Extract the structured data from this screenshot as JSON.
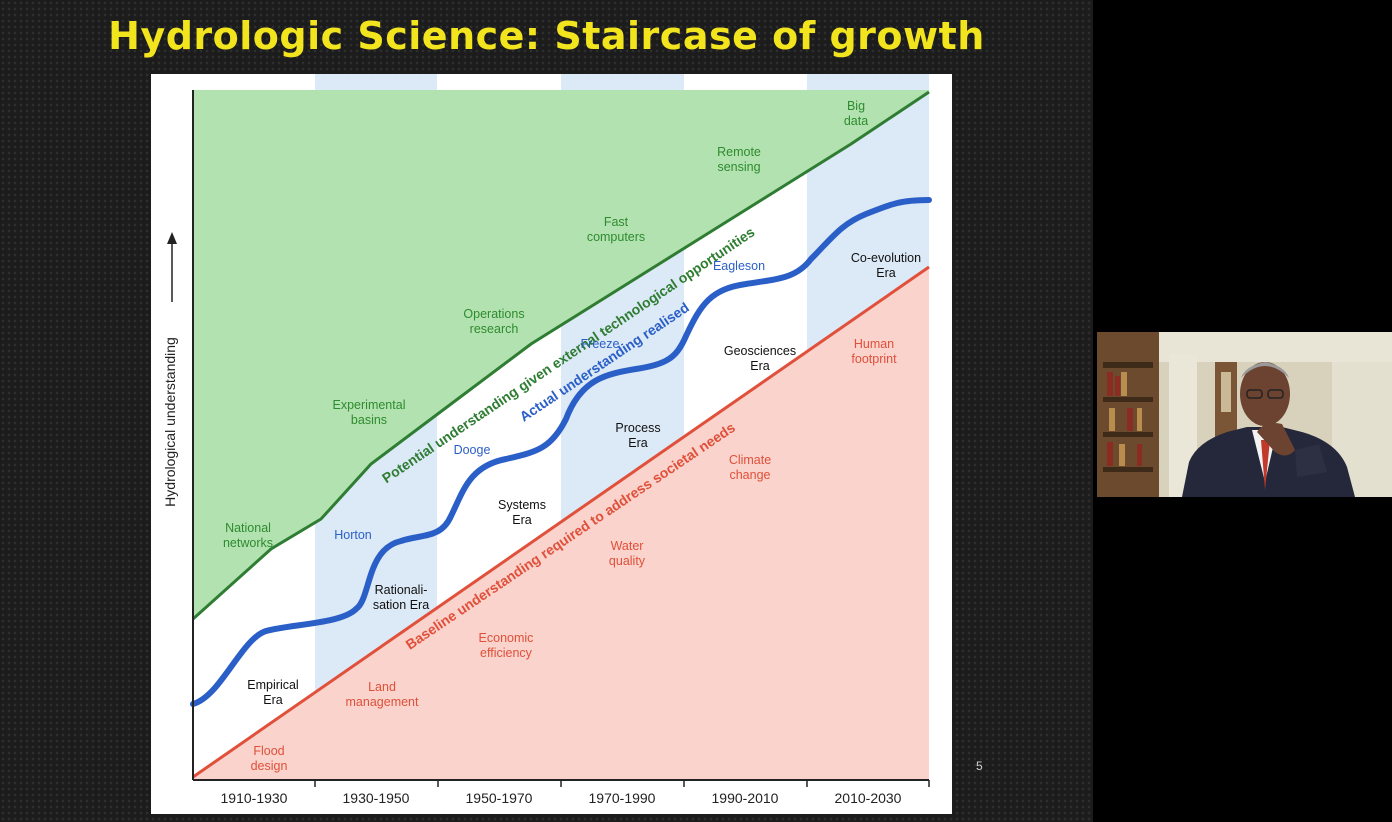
{
  "slide": {
    "title": "Hydrologic Science: Staircase of growth",
    "page_number": "5"
  },
  "chart_data": {
    "type": "line",
    "ylabel": "Hydrological understanding",
    "xlabel": "",
    "categories": [
      "1910-1930",
      "1930-1950",
      "1950-1970",
      "1970-1990",
      "1990-2010",
      "2010-2030"
    ],
    "series": [
      {
        "name": "Potential understanding given external technological opportunities",
        "color": "#2e7d32"
      },
      {
        "name": "Actual understanding realised",
        "color": "#2b5fc8"
      },
      {
        "name": "Baseline understanding required to address societal needs",
        "color": "#e0503a"
      }
    ],
    "green_labels": [
      "National networks",
      "Experimental basins",
      "Operations research",
      "Fast computers",
      "Remote sensing",
      "Big data"
    ],
    "blue_labels": [
      "Horton",
      "Dooge",
      "Freeze",
      "Eagleson"
    ],
    "era_labels": [
      "Empirical Era",
      "Rationali-sation Era",
      "Systems Era",
      "Process Era",
      "Geosciences Era",
      "Co-evolution Era"
    ],
    "red_labels": [
      "Flood design",
      "Land management",
      "Economic efficiency",
      "Water quality",
      "Climate change",
      "Human footprint"
    ],
    "colors": {
      "potential_fill": "#b3e2b1",
      "baseline_fill": "#f9d3cc",
      "band_fill": "#dce9f6"
    }
  }
}
